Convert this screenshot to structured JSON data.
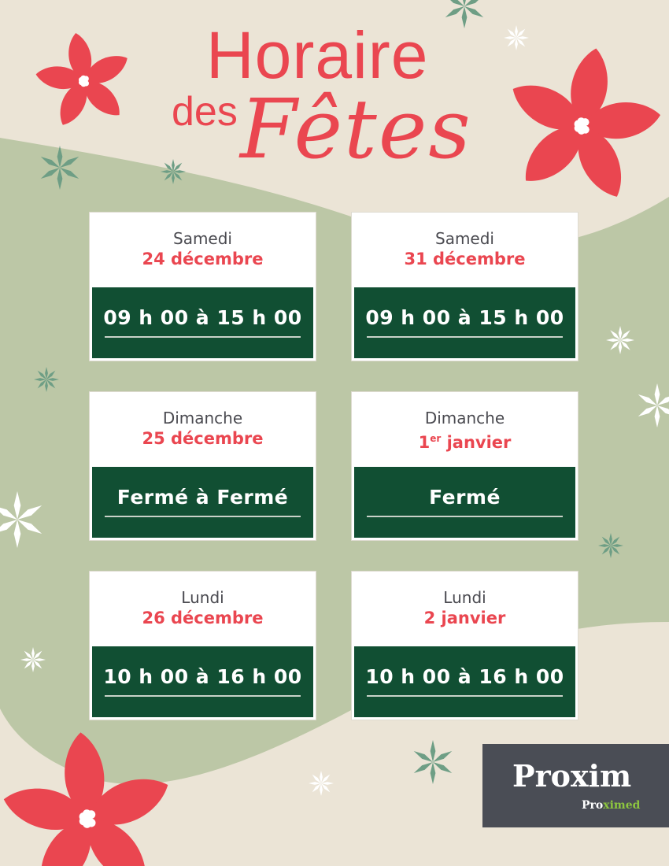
{
  "title": {
    "line1": "Horaire",
    "line2_small": "des",
    "line2_script": "Fêtes"
  },
  "colors": {
    "accent_red": "#ea4650",
    "dark_green": "#114f33",
    "sage": "#bcc7a6",
    "beige": "#ebe4d6",
    "logo_bg": "#4a4d55",
    "logo_green": "#8dc63f"
  },
  "schedule": [
    {
      "day": "Samedi",
      "date": "24 décembre",
      "date_sup": "",
      "hours": "09 h 00 à 15 h 00"
    },
    {
      "day": "Samedi",
      "date": "31 décembre",
      "date_sup": "",
      "hours": "09 h 00 à 15 h 00"
    },
    {
      "day": "Dimanche",
      "date": "25 décembre",
      "date_sup": "",
      "hours": "Fermé à Fermé"
    },
    {
      "day": "Dimanche",
      "date_num": "1",
      "date_sup": "er",
      "date": " janvier",
      "hours": "Fermé"
    },
    {
      "day": "Lundi",
      "date": "26 décembre",
      "date_sup": "",
      "hours": "10 h 00 à 16 h 00"
    },
    {
      "day": "Lundi",
      "date": "2 janvier",
      "date_sup": "",
      "hours": "10 h 00 à 16 h 00"
    }
  ],
  "logo": {
    "brand": "Proxim",
    "sub": "Proximed",
    "icon": "leaf-x-icon"
  }
}
